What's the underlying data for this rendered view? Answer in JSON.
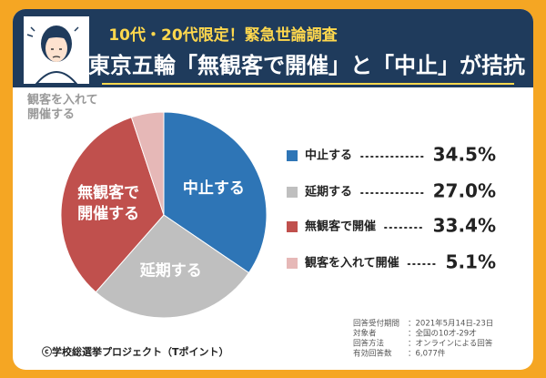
{
  "chart_data": {
    "type": "pie",
    "title": "10代・20代限定！緊急世論調査",
    "subtitle": "東京五輪「無観客で開催」と「中止」が拮抗",
    "categories": [
      "中止する",
      "延期する",
      "無観客で開催",
      "観客を入れて開催"
    ],
    "slice_labels": [
      [
        "中止する"
      ],
      [
        "延期する"
      ],
      [
        "無観客で",
        "開催する"
      ],
      [
        "観客を入れて",
        "開催する"
      ]
    ],
    "values": [
      34.5,
      27.0,
      33.4,
      5.1
    ],
    "value_labels": [
      "34.5%",
      "27.0%",
      "33.4%",
      "5.1%"
    ],
    "colors": [
      "#2e75b6",
      "#bfbfbf",
      "#c0504d",
      "#e6b8b7"
    ],
    "notes": [
      [
        "回答受付期間",
        "：2021年5月14日-23日"
      ],
      [
        "対象者",
        "：全国の10才-29才"
      ],
      [
        "回答方法",
        "：オンラインによる回答"
      ],
      [
        "有効回答数",
        "：6,077件"
      ]
    ],
    "credit": "ⓒ学校総選挙プロジェクト（Tポイント）"
  }
}
